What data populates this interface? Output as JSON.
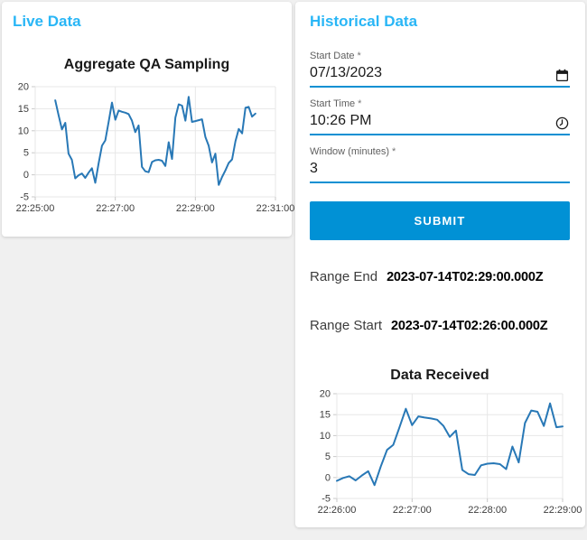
{
  "colors": {
    "heading_accent": "#29b6f6",
    "primary_button": "#0191d5",
    "input_underline": "#0a90d3",
    "chart_line": "#2878b6",
    "page_background": "#f0f0f0"
  },
  "live_panel": {
    "heading": "Live Data"
  },
  "historical_panel": {
    "heading": "Historical Data",
    "fields": {
      "start_date": {
        "label": "Start Date",
        "required_marker": "*",
        "value": "07/13/2023"
      },
      "start_time": {
        "label": "Start Time",
        "required_marker": "*",
        "value": "10:26 PM"
      },
      "window_minutes": {
        "label": "Window (minutes)",
        "required_marker": "*",
        "value": "3"
      }
    },
    "submit_label": "SUBMIT",
    "results": {
      "range_end": {
        "label": "Range End",
        "value": "2023-07-14T02:29:00.000Z"
      },
      "range_start": {
        "label": "Range Start",
        "value": "2023-07-14T02:26:00.000Z"
      }
    }
  },
  "chart_data": [
    {
      "type": "line",
      "title": "Aggregate QA Sampling",
      "xlabel": "",
      "ylabel": "",
      "y_range": [
        -5,
        20
      ],
      "y_ticks": [
        20,
        15,
        10,
        5,
        0,
        -5
      ],
      "x_axis_range_sec": [
        0,
        360
      ],
      "x_tick_sec": [
        0,
        120,
        240,
        360
      ],
      "x_tick_labels": [
        "22:25:00",
        "22:27:00",
        "22:29:00",
        "22:31:00"
      ],
      "grid": true,
      "legend": false,
      "series_start_sec": 30,
      "series_step_sec": 5,
      "values": [
        16.9,
        13.5,
        10.3,
        11.8,
        4.8,
        3.4,
        -0.8,
        -0.1,
        0.3,
        -0.7,
        0.5,
        1.5,
        -1.8,
        2.6,
        6.6,
        7.8,
        12.0,
        16.4,
        12.5,
        14.6,
        14.3,
        14.1,
        13.8,
        12.3,
        9.7,
        11.2,
        1.8,
        0.8,
        0.6,
        2.9,
        3.3,
        3.4,
        3.2,
        2.0,
        7.4,
        3.6,
        13.0,
        16.0,
        15.7,
        12.3,
        17.7,
        12.0,
        12.2,
        12.4,
        12.6,
        8.6,
        6.6,
        2.8,
        4.8,
        -2.3,
        -0.5,
        1.0,
        2.7,
        3.5,
        7.6,
        10.4,
        9.4,
        15.2,
        15.4,
        13.2,
        13.9
      ]
    },
    {
      "type": "line",
      "title": "Data Received",
      "xlabel": "",
      "ylabel": "",
      "y_range": [
        -5,
        20
      ],
      "y_ticks": [
        20,
        15,
        10,
        5,
        0,
        -5
      ],
      "x_axis_range_sec": [
        0,
        180
      ],
      "x_tick_sec": [
        0,
        60,
        120,
        180
      ],
      "x_tick_labels": [
        "22:26:00",
        "22:27:00",
        "22:28:00",
        "22:29:00"
      ],
      "grid": true,
      "legend": false,
      "series_start_sec": 0,
      "series_step_sec": 5,
      "values": [
        -0.8,
        -0.1,
        0.3,
        -0.7,
        0.5,
        1.5,
        -1.8,
        2.6,
        6.6,
        7.8,
        12.0,
        16.4,
        12.5,
        14.6,
        14.3,
        14.1,
        13.8,
        12.3,
        9.7,
        11.2,
        1.8,
        0.8,
        0.6,
        2.9,
        3.3,
        3.4,
        3.2,
        2.0,
        7.4,
        3.6,
        13.0,
        16.0,
        15.7,
        12.3,
        17.7,
        12.0,
        12.2
      ]
    }
  ]
}
